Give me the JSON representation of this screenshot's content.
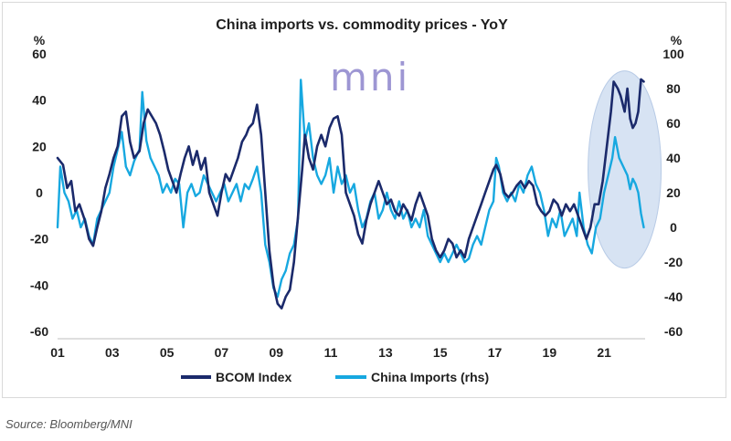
{
  "chart_data": {
    "type": "line",
    "title": "China imports vs. commodity prices - YoY",
    "watermark": "mni",
    "left_axis": {
      "unit_label": "%",
      "ylim": [
        -60,
        60
      ],
      "ticks": [
        "60",
        "40",
        "20",
        "0",
        "-20",
        "-40",
        "-60"
      ]
    },
    "right_axis": {
      "unit_label": "%",
      "ylim": [
        -60,
        100
      ],
      "ticks": [
        "100",
        "80",
        "60",
        "40",
        "20",
        "0",
        "-20",
        "-40",
        "-60"
      ]
    },
    "x_axis": {
      "range": [
        2001,
        2022.5
      ],
      "ticks": [
        "01",
        "03",
        "05",
        "07",
        "09",
        "11",
        "13",
        "15",
        "17",
        "19",
        "21"
      ]
    },
    "series": [
      {
        "name": "BCOM Index",
        "axis": "left",
        "color": "#1b2a6b",
        "points": [
          [
            2001.0,
            15
          ],
          [
            2001.2,
            12
          ],
          [
            2001.35,
            2
          ],
          [
            2001.5,
            5
          ],
          [
            2001.65,
            -8
          ],
          [
            2001.8,
            -5
          ],
          [
            2002.0,
            -12
          ],
          [
            2002.15,
            -20
          ],
          [
            2002.3,
            -23
          ],
          [
            2002.45,
            -15
          ],
          [
            2002.6,
            -8
          ],
          [
            2002.75,
            2
          ],
          [
            2002.9,
            8
          ],
          [
            2003.05,
            15
          ],
          [
            2003.2,
            20
          ],
          [
            2003.35,
            33
          ],
          [
            2003.5,
            35
          ],
          [
            2003.65,
            22
          ],
          [
            2003.8,
            15
          ],
          [
            2004.0,
            18
          ],
          [
            2004.15,
            30
          ],
          [
            2004.3,
            36
          ],
          [
            2004.45,
            33
          ],
          [
            2004.6,
            30
          ],
          [
            2004.75,
            25
          ],
          [
            2004.9,
            18
          ],
          [
            2005.05,
            10
          ],
          [
            2005.2,
            5
          ],
          [
            2005.35,
            0
          ],
          [
            2005.5,
            8
          ],
          [
            2005.65,
            15
          ],
          [
            2005.8,
            20
          ],
          [
            2005.95,
            12
          ],
          [
            2006.1,
            18
          ],
          [
            2006.25,
            10
          ],
          [
            2006.4,
            15
          ],
          [
            2006.55,
            0
          ],
          [
            2006.7,
            -5
          ],
          [
            2006.85,
            -10
          ],
          [
            2007.0,
            0
          ],
          [
            2007.15,
            8
          ],
          [
            2007.3,
            5
          ],
          [
            2007.45,
            10
          ],
          [
            2007.6,
            15
          ],
          [
            2007.75,
            22
          ],
          [
            2007.9,
            25
          ],
          [
            2008.0,
            28
          ],
          [
            2008.15,
            30
          ],
          [
            2008.3,
            38
          ],
          [
            2008.45,
            25
          ],
          [
            2008.6,
            0
          ],
          [
            2008.75,
            -25
          ],
          [
            2008.9,
            -40
          ],
          [
            2009.05,
            -48
          ],
          [
            2009.2,
            -50
          ],
          [
            2009.35,
            -45
          ],
          [
            2009.5,
            -42
          ],
          [
            2009.65,
            -30
          ],
          [
            2009.8,
            -10
          ],
          [
            2009.95,
            10
          ],
          [
            2010.05,
            25
          ],
          [
            2010.2,
            15
          ],
          [
            2010.35,
            10
          ],
          [
            2010.5,
            20
          ],
          [
            2010.65,
            25
          ],
          [
            2010.8,
            20
          ],
          [
            2010.95,
            28
          ],
          [
            2011.1,
            32
          ],
          [
            2011.25,
            33
          ],
          [
            2011.4,
            25
          ],
          [
            2011.55,
            0
          ],
          [
            2011.7,
            -5
          ],
          [
            2011.85,
            -10
          ],
          [
            2012.0,
            -18
          ],
          [
            2012.15,
            -22
          ],
          [
            2012.3,
            -12
          ],
          [
            2012.45,
            -5
          ],
          [
            2012.6,
            0
          ],
          [
            2012.75,
            5
          ],
          [
            2012.9,
            0
          ],
          [
            2013.05,
            -5
          ],
          [
            2013.2,
            -3
          ],
          [
            2013.35,
            -8
          ],
          [
            2013.5,
            -10
          ],
          [
            2013.65,
            -5
          ],
          [
            2013.8,
            -8
          ],
          [
            2013.95,
            -12
          ],
          [
            2014.1,
            -5
          ],
          [
            2014.25,
            0
          ],
          [
            2014.4,
            -5
          ],
          [
            2014.55,
            -10
          ],
          [
            2014.7,
            -20
          ],
          [
            2014.85,
            -25
          ],
          [
            2015.0,
            -28
          ],
          [
            2015.15,
            -25
          ],
          [
            2015.3,
            -20
          ],
          [
            2015.45,
            -22
          ],
          [
            2015.6,
            -28
          ],
          [
            2015.75,
            -25
          ],
          [
            2015.9,
            -28
          ],
          [
            2016.05,
            -20
          ],
          [
            2016.2,
            -15
          ],
          [
            2016.35,
            -10
          ],
          [
            2016.5,
            -5
          ],
          [
            2016.65,
            0
          ],
          [
            2016.8,
            5
          ],
          [
            2016.95,
            10
          ],
          [
            2017.05,
            12
          ],
          [
            2017.2,
            8
          ],
          [
            2017.35,
            0
          ],
          [
            2017.5,
            -2
          ],
          [
            2017.65,
            0
          ],
          [
            2017.8,
            3
          ],
          [
            2017.95,
            5
          ],
          [
            2018.1,
            2
          ],
          [
            2018.25,
            5
          ],
          [
            2018.4,
            3
          ],
          [
            2018.55,
            -5
          ],
          [
            2018.7,
            -8
          ],
          [
            2018.85,
            -10
          ],
          [
            2019.0,
            -8
          ],
          [
            2019.15,
            -3
          ],
          [
            2019.3,
            -5
          ],
          [
            2019.45,
            -10
          ],
          [
            2019.6,
            -5
          ],
          [
            2019.75,
            -8
          ],
          [
            2019.9,
            -5
          ],
          [
            2020.05,
            -10
          ],
          [
            2020.2,
            -15
          ],
          [
            2020.35,
            -20
          ],
          [
            2020.5,
            -15
          ],
          [
            2020.65,
            -5
          ],
          [
            2020.8,
            -5
          ],
          [
            2020.95,
            5
          ],
          [
            2021.1,
            20
          ],
          [
            2021.25,
            35
          ],
          [
            2021.35,
            48
          ],
          [
            2021.5,
            45
          ],
          [
            2021.6,
            42
          ],
          [
            2021.75,
            35
          ],
          [
            2021.85,
            45
          ],
          [
            2021.95,
            32
          ],
          [
            2022.05,
            28
          ],
          [
            2022.15,
            30
          ],
          [
            2022.25,
            35
          ],
          [
            2022.35,
            49
          ],
          [
            2022.45,
            48
          ]
        ]
      },
      {
        "name": "China Imports (rhs)",
        "axis": "right",
        "color": "#17a8e0",
        "points": [
          [
            2001.0,
            0
          ],
          [
            2001.1,
            35
          ],
          [
            2001.25,
            20
          ],
          [
            2001.4,
            15
          ],
          [
            2001.55,
            5
          ],
          [
            2001.7,
            10
          ],
          [
            2001.85,
            0
          ],
          [
            2002.0,
            5
          ],
          [
            2002.15,
            -5
          ],
          [
            2002.3,
            -10
          ],
          [
            2002.45,
            5
          ],
          [
            2002.6,
            10
          ],
          [
            2002.75,
            15
          ],
          [
            2002.9,
            20
          ],
          [
            2003.05,
            35
          ],
          [
            2003.2,
            45
          ],
          [
            2003.35,
            55
          ],
          [
            2003.5,
            35
          ],
          [
            2003.65,
            30
          ],
          [
            2003.8,
            38
          ],
          [
            2004.0,
            45
          ],
          [
            2004.1,
            78
          ],
          [
            2004.25,
            50
          ],
          [
            2004.4,
            40
          ],
          [
            2004.55,
            35
          ],
          [
            2004.7,
            30
          ],
          [
            2004.85,
            20
          ],
          [
            2005.0,
            25
          ],
          [
            2005.15,
            20
          ],
          [
            2005.3,
            28
          ],
          [
            2005.45,
            25
          ],
          [
            2005.6,
            0
          ],
          [
            2005.75,
            20
          ],
          [
            2005.9,
            25
          ],
          [
            2006.05,
            18
          ],
          [
            2006.2,
            20
          ],
          [
            2006.35,
            30
          ],
          [
            2006.5,
            25
          ],
          [
            2006.65,
            20
          ],
          [
            2006.8,
            15
          ],
          [
            2006.95,
            20
          ],
          [
            2007.1,
            25
          ],
          [
            2007.25,
            15
          ],
          [
            2007.4,
            20
          ],
          [
            2007.55,
            25
          ],
          [
            2007.7,
            15
          ],
          [
            2007.85,
            25
          ],
          [
            2008.0,
            22
          ],
          [
            2008.15,
            28
          ],
          [
            2008.3,
            35
          ],
          [
            2008.45,
            20
          ],
          [
            2008.6,
            -10
          ],
          [
            2008.75,
            -20
          ],
          [
            2008.9,
            -35
          ],
          [
            2009.05,
            -40
          ],
          [
            2009.2,
            -30
          ],
          [
            2009.35,
            -25
          ],
          [
            2009.5,
            -15
          ],
          [
            2009.65,
            -10
          ],
          [
            2009.8,
            5
          ],
          [
            2009.9,
            85
          ],
          [
            2010.05,
            50
          ],
          [
            2010.2,
            60
          ],
          [
            2010.35,
            40
          ],
          [
            2010.5,
            30
          ],
          [
            2010.65,
            25
          ],
          [
            2010.8,
            30
          ],
          [
            2010.95,
            40
          ],
          [
            2011.1,
            20
          ],
          [
            2011.25,
            35
          ],
          [
            2011.4,
            25
          ],
          [
            2011.55,
            30
          ],
          [
            2011.7,
            20
          ],
          [
            2011.85,
            25
          ],
          [
            2012.0,
            10
          ],
          [
            2012.15,
            0
          ],
          [
            2012.3,
            5
          ],
          [
            2012.45,
            15
          ],
          [
            2012.6,
            20
          ],
          [
            2012.75,
            5
          ],
          [
            2012.9,
            10
          ],
          [
            2013.05,
            20
          ],
          [
            2013.2,
            10
          ],
          [
            2013.35,
            5
          ],
          [
            2013.5,
            15
          ],
          [
            2013.65,
            5
          ],
          [
            2013.8,
            10
          ],
          [
            2013.95,
            0
          ],
          [
            2014.1,
            5
          ],
          [
            2014.25,
            0
          ],
          [
            2014.4,
            10
          ],
          [
            2014.55,
            -5
          ],
          [
            2014.7,
            -10
          ],
          [
            2014.85,
            -15
          ],
          [
            2015.0,
            -20
          ],
          [
            2015.15,
            -15
          ],
          [
            2015.3,
            -20
          ],
          [
            2015.45,
            -15
          ],
          [
            2015.6,
            -10
          ],
          [
            2015.75,
            -15
          ],
          [
            2015.9,
            -20
          ],
          [
            2016.05,
            -18
          ],
          [
            2016.2,
            -10
          ],
          [
            2016.35,
            -5
          ],
          [
            2016.5,
            -10
          ],
          [
            2016.65,
            0
          ],
          [
            2016.8,
            10
          ],
          [
            2016.95,
            15
          ],
          [
            2017.05,
            40
          ],
          [
            2017.15,
            35
          ],
          [
            2017.3,
            20
          ],
          [
            2017.45,
            15
          ],
          [
            2017.6,
            20
          ],
          [
            2017.75,
            15
          ],
          [
            2017.9,
            25
          ],
          [
            2018.05,
            20
          ],
          [
            2018.2,
            30
          ],
          [
            2018.35,
            35
          ],
          [
            2018.5,
            25
          ],
          [
            2018.65,
            20
          ],
          [
            2018.8,
            10
          ],
          [
            2018.95,
            -5
          ],
          [
            2019.1,
            5
          ],
          [
            2019.25,
            0
          ],
          [
            2019.4,
            10
          ],
          [
            2019.55,
            -5
          ],
          [
            2019.7,
            0
          ],
          [
            2019.85,
            5
          ],
          [
            2020.0,
            -5
          ],
          [
            2020.1,
            20
          ],
          [
            2020.25,
            0
          ],
          [
            2020.4,
            -10
          ],
          [
            2020.55,
            -15
          ],
          [
            2020.7,
            0
          ],
          [
            2020.85,
            5
          ],
          [
            2021.0,
            20
          ],
          [
            2021.15,
            30
          ],
          [
            2021.3,
            40
          ],
          [
            2021.4,
            52
          ],
          [
            2021.55,
            40
          ],
          [
            2021.7,
            35
          ],
          [
            2021.85,
            30
          ],
          [
            2021.95,
            22
          ],
          [
            2022.05,
            28
          ],
          [
            2022.15,
            25
          ],
          [
            2022.25,
            20
          ],
          [
            2022.35,
            8
          ],
          [
            2022.45,
            0
          ]
        ]
      }
    ],
    "legend": [
      "BCOM Index",
      "China Imports (rhs)"
    ],
    "highlight": {
      "x_center": 2021.75,
      "y_center_left": 10,
      "note": "ellipse around 2021-22 surge"
    }
  },
  "source": "Source: Bloomberg/MNI"
}
